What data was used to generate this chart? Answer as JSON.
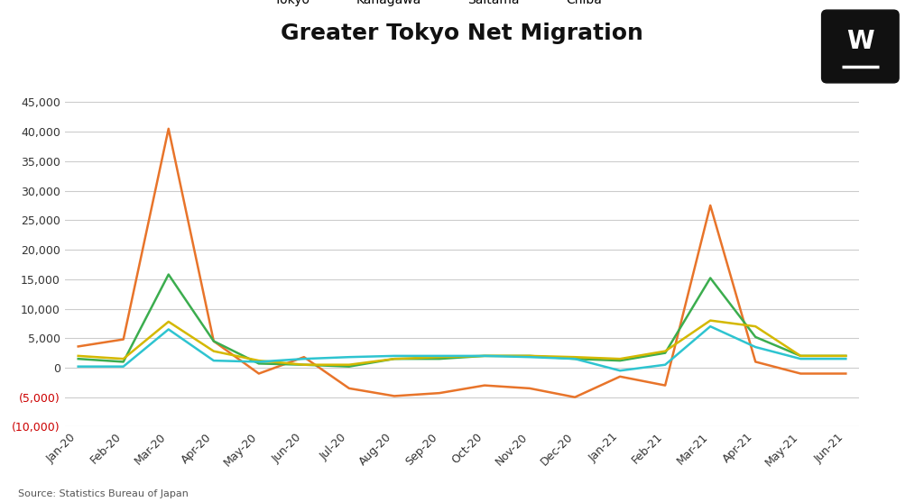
{
  "title": "Greater Tokyo Net Migration",
  "source": "Source: Statistics Bureau of Japan",
  "x_labels": [
    "Jan-20",
    "Feb-20",
    "Mar-20",
    "Apr-20",
    "May-20",
    "Jun-20",
    "Jul-20",
    "Aug-20",
    "Sep-20",
    "Oct-20",
    "Nov-20",
    "Dec-20",
    "Jan-21",
    "Feb-21",
    "Mar-21",
    "Apr-21",
    "May-21",
    "Jun-21"
  ],
  "series": {
    "Tokyo": {
      "color": "#E8742A",
      "values": [
        3600,
        4800,
        40500,
        4500,
        -1000,
        1800,
        -3500,
        -4800,
        -4300,
        -3000,
        -3500,
        -5000,
        -1500,
        -3000,
        27500,
        1000,
        -1000,
        -1000
      ]
    },
    "Kanagawa": {
      "color": "#3BAD4E",
      "values": [
        1500,
        1000,
        15800,
        4500,
        700,
        500,
        200,
        1500,
        1500,
        2000,
        2000,
        1500,
        1200,
        2500,
        15200,
        5200,
        2000,
        2000
      ]
    },
    "Saitama": {
      "color": "#D4B800",
      "values": [
        2000,
        1500,
        7800,
        2800,
        1200,
        500,
        500,
        1500,
        1800,
        2000,
        2000,
        1800,
        1500,
        2800,
        8000,
        7000,
        2000,
        2000
      ]
    },
    "Chiba": {
      "color": "#2EC4D0",
      "values": [
        200,
        200,
        6500,
        1200,
        1000,
        1500,
        1800,
        2000,
        2000,
        2000,
        1800,
        1500,
        -500,
        500,
        7000,
        3500,
        1500,
        1500
      ]
    }
  },
  "ylim": [
    -10000,
    47000
  ],
  "yticks": [
    -10000,
    -5000,
    0,
    5000,
    10000,
    15000,
    20000,
    25000,
    30000,
    35000,
    40000,
    45000
  ],
  "background_color": "#FFFFFF",
  "grid_color": "#CCCCCC",
  "title_fontsize": 18,
  "label_fontsize": 10,
  "tick_fontsize": 9,
  "negative_tick_color": "#CC0000",
  "logo_bg": "#111111"
}
